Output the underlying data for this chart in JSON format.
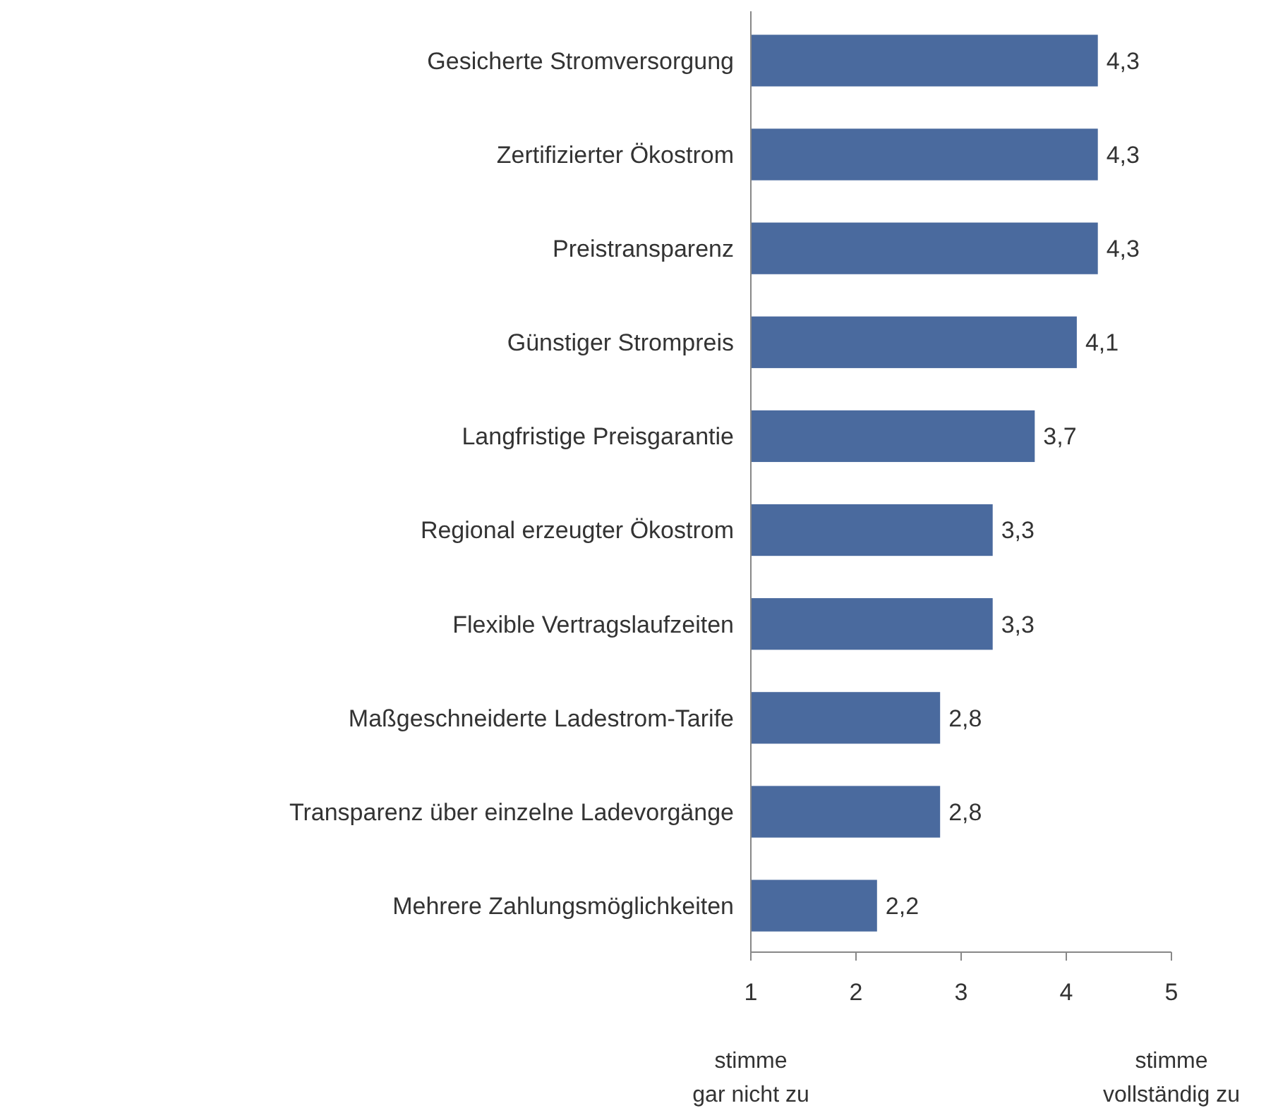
{
  "chart_data": {
    "type": "bar",
    "orientation": "horizontal",
    "categories": [
      "Gesicherte Stromversorgung",
      "Zertifizierter Ökostrom",
      "Preistransparenz",
      "Günstiger Strompreis",
      "Langfristige Preisgarantie",
      "Regional erzeugter Ökostrom",
      "Flexible Vertragslaufzeiten",
      "Maßgeschneiderte Ladestrom-Tarife",
      "Transparenz über einzelne Ladevorgänge",
      "Mehrere Zahlungsmöglichkeiten"
    ],
    "values": [
      4.3,
      4.3,
      4.3,
      4.1,
      3.7,
      3.3,
      3.3,
      2.8,
      2.8,
      2.2
    ],
    "color": "#4a6a9e",
    "value_labels": [
      "4,3",
      "4,3",
      "4,3",
      "4,1",
      "3,7",
      "3,3",
      "3,3",
      "2,8",
      "2,8",
      "2,2"
    ],
    "xlim": [
      1,
      5
    ],
    "xticks": [
      1,
      2,
      3,
      4,
      5
    ],
    "grid": false,
    "annotations": [
      "stimme\ngar nicht zu",
      "stimme\nvollständig zu"
    ]
  }
}
